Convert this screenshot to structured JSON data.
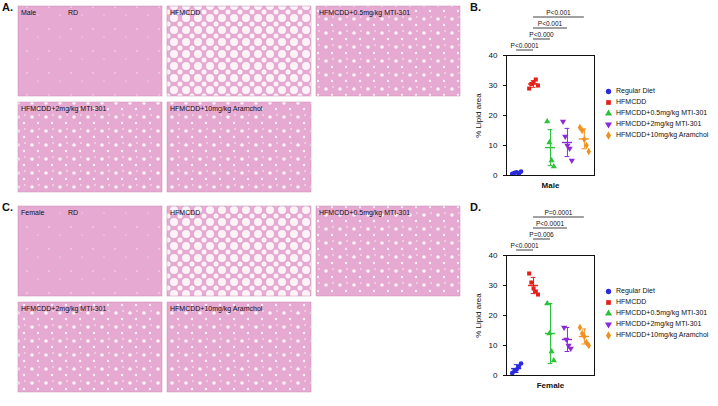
{
  "image_panels": [
    {
      "panel_label": "A.",
      "sex": "Male",
      "tiles": [
        "RD",
        "HFMCDD",
        "HFMCDD+0.5mg/kg MTI-301",
        "HFMCDD+2mg/kg MTI-301",
        "HFMCDD+10mg/kg Aramchol"
      ]
    },
    {
      "panel_label": "C.",
      "sex": "Female",
      "tiles": [
        "RD",
        "HFMCDD",
        "HFMCDD+0.5mg/kg MTI-301",
        "HFMCDD+2mg/kg MTI-301",
        "HFMCDD+10mg/kg Aramchol"
      ]
    }
  ],
  "chart_data": [
    {
      "panel_label": "B.",
      "type": "scatter",
      "xlabel": "Male",
      "ylabel": "% Lipid area",
      "ylim": [
        0,
        40
      ],
      "yticks": [
        0,
        10,
        20,
        30,
        40
      ],
      "tick_labels": "y",
      "legend": "right",
      "series": [
        {
          "name": "Regular Diet",
          "color": "#2b2bdc",
          "marker": "circle",
          "values": [
            0.6,
            0.9,
            1.1,
            0.7,
            1.3
          ],
          "mean": 0.9,
          "error": 0.3
        },
        {
          "name": "HFMCDD",
          "color": "#e3201b",
          "marker": "square",
          "values": [
            29,
            30.5,
            31,
            32,
            30
          ],
          "mean": 30.5,
          "error": 1.1
        },
        {
          "name": "HFMCDD+0.5mg/kg MTI-301",
          "color": "#2cc23a",
          "marker": "triangle",
          "values": [
            18,
            11,
            5,
            3
          ],
          "mean": 9.3,
          "error": 6
        },
        {
          "name": "HFMCDD+2mg/kg MTI-301",
          "color": "#8c2ad6",
          "marker": "triangle-down",
          "values": [
            18,
            13,
            10,
            9,
            5
          ],
          "mean": 11,
          "error": 4.7
        },
        {
          "name": "HFMCDD+10mg/kg Aramchol",
          "color": "#f0911e",
          "marker": "diamond",
          "values": [
            16,
            15,
            12,
            10,
            8
          ],
          "mean": 12.2,
          "error": 3.3
        }
      ],
      "annotations": [
        {
          "from": "Regular Diet",
          "to": "HFMCDD",
          "label": "P<0.0001"
        },
        {
          "from": "HFMCDD",
          "to": "HFMCDD+0.5mg/kg MTI-301",
          "label": "P<0.000"
        },
        {
          "from": "HFMCDD",
          "to": "HFMCDD+2mg/kg MTI-301",
          "label": "P<0.001"
        },
        {
          "from": "HFMCDD",
          "to": "HFMCDD+10mg/kg Aramchol",
          "label": "P<0.001"
        }
      ]
    },
    {
      "panel_label": "D.",
      "type": "scatter",
      "xlabel": "Female",
      "ylabel": "% Lipid area",
      "ylim": [
        0,
        40
      ],
      "yticks": [
        0,
        10,
        20,
        30,
        40
      ],
      "tick_labels": "y",
      "legend": "right",
      "series": [
        {
          "name": "Regular Diet",
          "color": "#2b2bdc",
          "marker": "circle",
          "values": [
            0.8,
            1.5,
            2,
            3,
            4
          ],
          "mean": 2.3,
          "error": 1.3
        },
        {
          "name": "HFMCDD",
          "color": "#e3201b",
          "marker": "square",
          "values": [
            34,
            31,
            29,
            28,
            27
          ],
          "mean": 30,
          "error": 2.7
        },
        {
          "name": "HFMCDD+0.5mg/kg MTI-301",
          "color": "#2cc23a",
          "marker": "triangle",
          "values": [
            24,
            14,
            8,
            5
          ],
          "mean": 14,
          "error": 10
        },
        {
          "name": "HFMCDD+2mg/kg MTI-301",
          "color": "#8c2ad6",
          "marker": "triangle-down",
          "values": [
            16,
            12,
            10,
            9
          ],
          "mean": 12,
          "error": 4
        },
        {
          "name": "HFMCDD+10mg/kg Aramchol",
          "color": "#f0911e",
          "marker": "diamond",
          "values": [
            16,
            14,
            13,
            11,
            10
          ],
          "mean": 13,
          "error": 2.5
        }
      ],
      "annotations": [
        {
          "from": "Regular Diet",
          "to": "HFMCDD",
          "label": "P<0.0001"
        },
        {
          "from": "HFMCDD",
          "to": "HFMCDD+0.5mg/kg MTI-301",
          "label": "P=0.006"
        },
        {
          "from": "HFMCDD",
          "to": "HFMCDD+2mg/kg MTI-301",
          "label": "P<0.0001"
        },
        {
          "from": "HFMCDD",
          "to": "HFMCDD+10mg/kg Aramchol",
          "label": "P=0.0001"
        }
      ]
    }
  ]
}
